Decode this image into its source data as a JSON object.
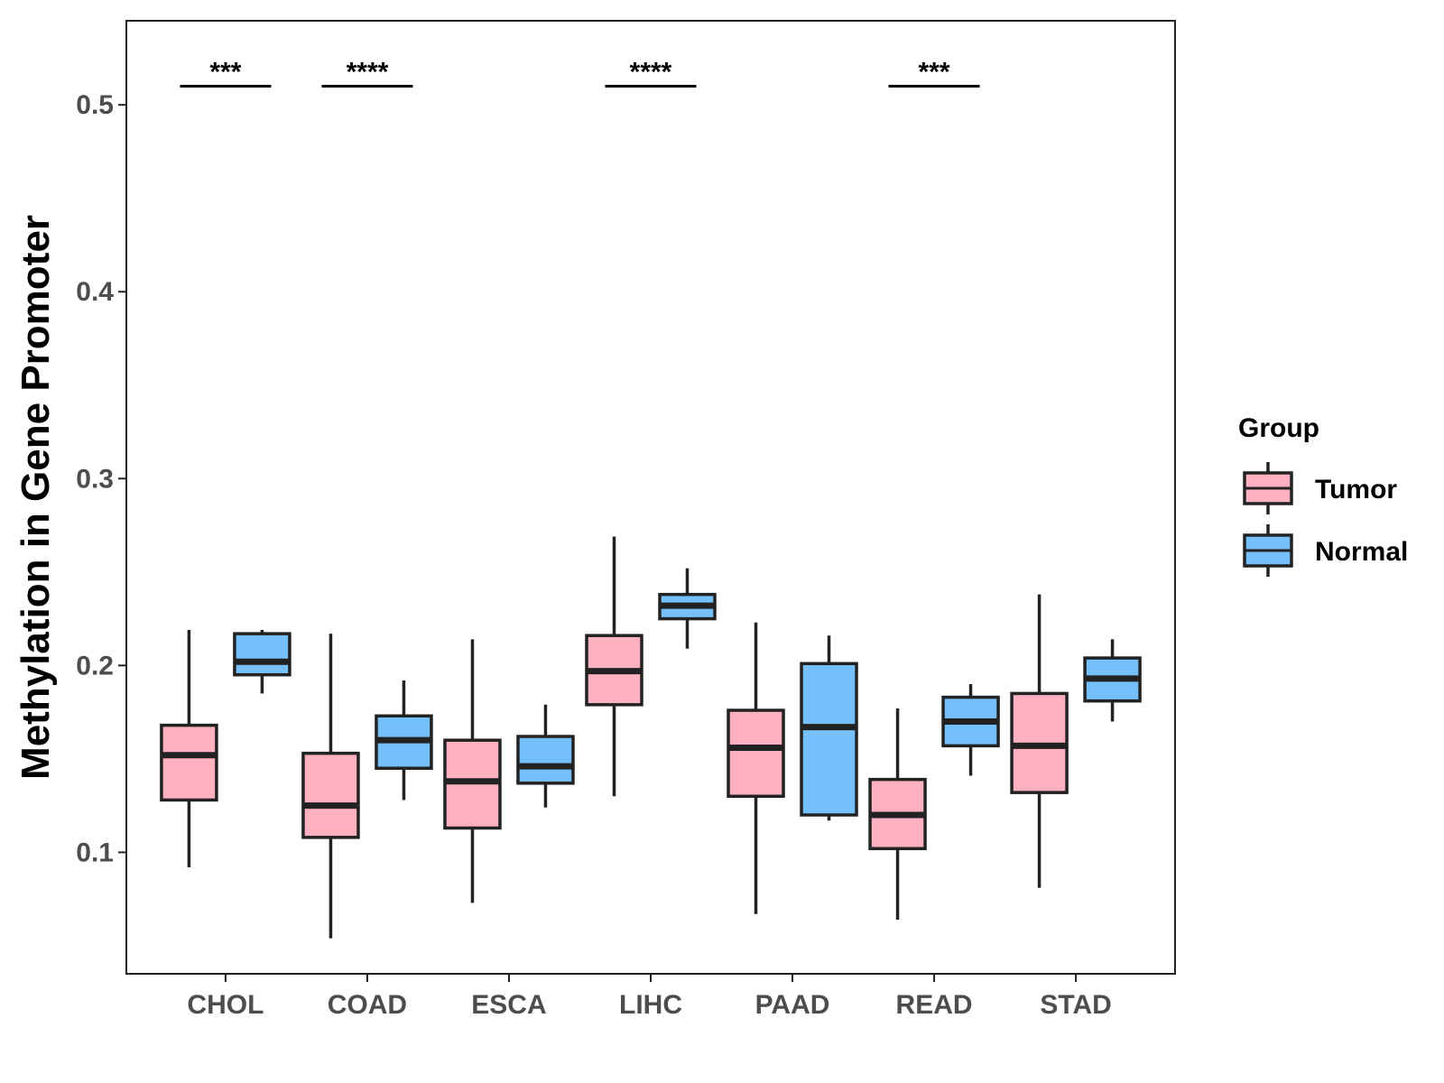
{
  "chart_data": {
    "type": "boxplot",
    "title": "",
    "xlabel": "",
    "ylabel": "Methylation in Gene Promoter",
    "ylim": [
      0.035,
      0.545
    ],
    "yticks": [
      0.1,
      0.2,
      0.3,
      0.4,
      0.5
    ],
    "ytick_labels": [
      "0.1",
      "0.2",
      "0.3",
      "0.4",
      "0.5"
    ],
    "categories": [
      "CHOL",
      "COAD",
      "ESCA",
      "LIHC",
      "PAAD",
      "READ",
      "STAD"
    ],
    "legend": {
      "title": "Group",
      "position": "right",
      "entries": [
        "Tumor",
        "Normal"
      ]
    },
    "colors": {
      "Tumor": "#ffb0c1",
      "Normal": "#75bffa",
      "outline": "#222222"
    },
    "series": [
      {
        "name": "Tumor",
        "boxes": [
          {
            "category": "CHOL",
            "whisker_low": 0.092,
            "q1": 0.128,
            "median": 0.152,
            "q3": 0.168,
            "whisker_high": 0.219
          },
          {
            "category": "COAD",
            "whisker_low": 0.054,
            "q1": 0.108,
            "median": 0.125,
            "q3": 0.153,
            "whisker_high": 0.217
          },
          {
            "category": "ESCA",
            "whisker_low": 0.073,
            "q1": 0.113,
            "median": 0.138,
            "q3": 0.16,
            "whisker_high": 0.214
          },
          {
            "category": "LIHC",
            "whisker_low": 0.13,
            "q1": 0.179,
            "median": 0.197,
            "q3": 0.216,
            "whisker_high": 0.269
          },
          {
            "category": "PAAD",
            "whisker_low": 0.067,
            "q1": 0.13,
            "median": 0.156,
            "q3": 0.176,
            "whisker_high": 0.223
          },
          {
            "category": "READ",
            "whisker_low": 0.064,
            "q1": 0.102,
            "median": 0.12,
            "q3": 0.139,
            "whisker_high": 0.177
          },
          {
            "category": "STAD",
            "whisker_low": 0.081,
            "q1": 0.132,
            "median": 0.157,
            "q3": 0.185,
            "whisker_high": 0.238
          }
        ]
      },
      {
        "name": "Normal",
        "boxes": [
          {
            "category": "CHOL",
            "whisker_low": 0.185,
            "q1": 0.195,
            "median": 0.202,
            "q3": 0.217,
            "whisker_high": 0.219
          },
          {
            "category": "COAD",
            "whisker_low": 0.128,
            "q1": 0.145,
            "median": 0.16,
            "q3": 0.173,
            "whisker_high": 0.192
          },
          {
            "category": "ESCA",
            "whisker_low": 0.124,
            "q1": 0.137,
            "median": 0.146,
            "q3": 0.162,
            "whisker_high": 0.179
          },
          {
            "category": "LIHC",
            "whisker_low": 0.209,
            "q1": 0.225,
            "median": 0.232,
            "q3": 0.238,
            "whisker_high": 0.252
          },
          {
            "category": "PAAD",
            "whisker_low": 0.117,
            "q1": 0.12,
            "median": 0.167,
            "q3": 0.201,
            "whisker_high": 0.216
          },
          {
            "category": "READ",
            "whisker_low": 0.141,
            "q1": 0.157,
            "median": 0.17,
            "q3": 0.183,
            "whisker_high": 0.19
          },
          {
            "category": "STAD",
            "whisker_low": 0.17,
            "q1": 0.181,
            "median": 0.193,
            "q3": 0.204,
            "whisker_high": 0.214
          }
        ]
      }
    ],
    "significance": [
      {
        "category": "CHOL",
        "label": "***",
        "y": 0.51
      },
      {
        "category": "COAD",
        "label": "****",
        "y": 0.51
      },
      {
        "category": "LIHC",
        "label": "****",
        "y": 0.51
      },
      {
        "category": "READ",
        "label": "***",
        "y": 0.51
      }
    ]
  }
}
